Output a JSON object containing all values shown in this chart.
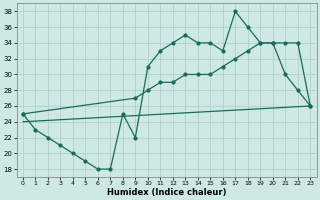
{
  "xlabel": "Humidex (Indice chaleur)",
  "bg_color": "#cde8e5",
  "grid_color": "#a8cece",
  "line_color": "#1a6b5a",
  "xlim": [
    -0.5,
    23.5
  ],
  "ylim": [
    17,
    39
  ],
  "xticks": [
    0,
    1,
    2,
    3,
    4,
    5,
    6,
    7,
    8,
    9,
    10,
    11,
    12,
    13,
    14,
    15,
    16,
    17,
    18,
    19,
    20,
    21,
    22,
    23
  ],
  "yticks": [
    18,
    20,
    22,
    24,
    26,
    28,
    30,
    32,
    34,
    36,
    38
  ],
  "line1_x": [
    0,
    1,
    2,
    3,
    4,
    5,
    6,
    7,
    8,
    9,
    10,
    11,
    12,
    13,
    14,
    15,
    16,
    17,
    18,
    19,
    20,
    21,
    22,
    23
  ],
  "line1_y": [
    25,
    23,
    22,
    21,
    20,
    19,
    18,
    18,
    25,
    22,
    31,
    33,
    34,
    35,
    34,
    34,
    33,
    38,
    36,
    34,
    34,
    30,
    28,
    26
  ],
  "line2_x": [
    0,
    9,
    10,
    11,
    12,
    13,
    14,
    15,
    16,
    17,
    18,
    19,
    20,
    21,
    22,
    23
  ],
  "line2_y": [
    25,
    27,
    28,
    29,
    29,
    30,
    30,
    30,
    31,
    32,
    33,
    34,
    34,
    34,
    34,
    26
  ],
  "line3_x": [
    0,
    23
  ],
  "line3_y": [
    24,
    26
  ],
  "figsize": [
    3.2,
    2.0
  ],
  "dpi": 100
}
